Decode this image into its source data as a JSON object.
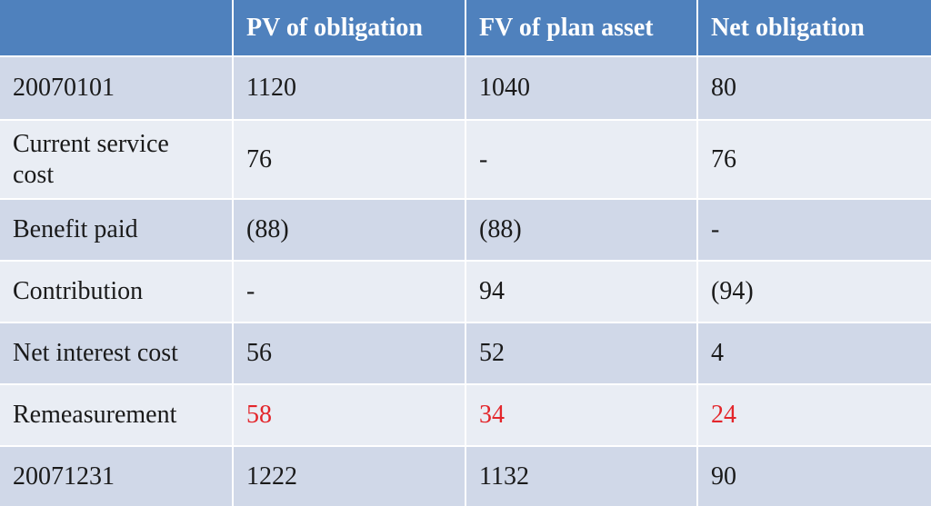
{
  "table": {
    "columns": [
      "PV of obligation",
      "FV of plan asset",
      "Net obligation"
    ],
    "rows": [
      [
        "20070101",
        "1120",
        "1040",
        "80"
      ],
      [
        "Current service cost",
        "76",
        "-",
        "76"
      ],
      [
        "Benefit paid",
        "(88)",
        "(88)",
        "-"
      ],
      [
        "Contribution",
        "-",
        "94",
        "(94)"
      ],
      [
        "Net interest cost",
        "56",
        "52",
        "4"
      ],
      [
        "Remeasurement",
        "58",
        "34",
        "24"
      ],
      [
        "20071231",
        "1222",
        "1132",
        "90"
      ]
    ]
  }
}
